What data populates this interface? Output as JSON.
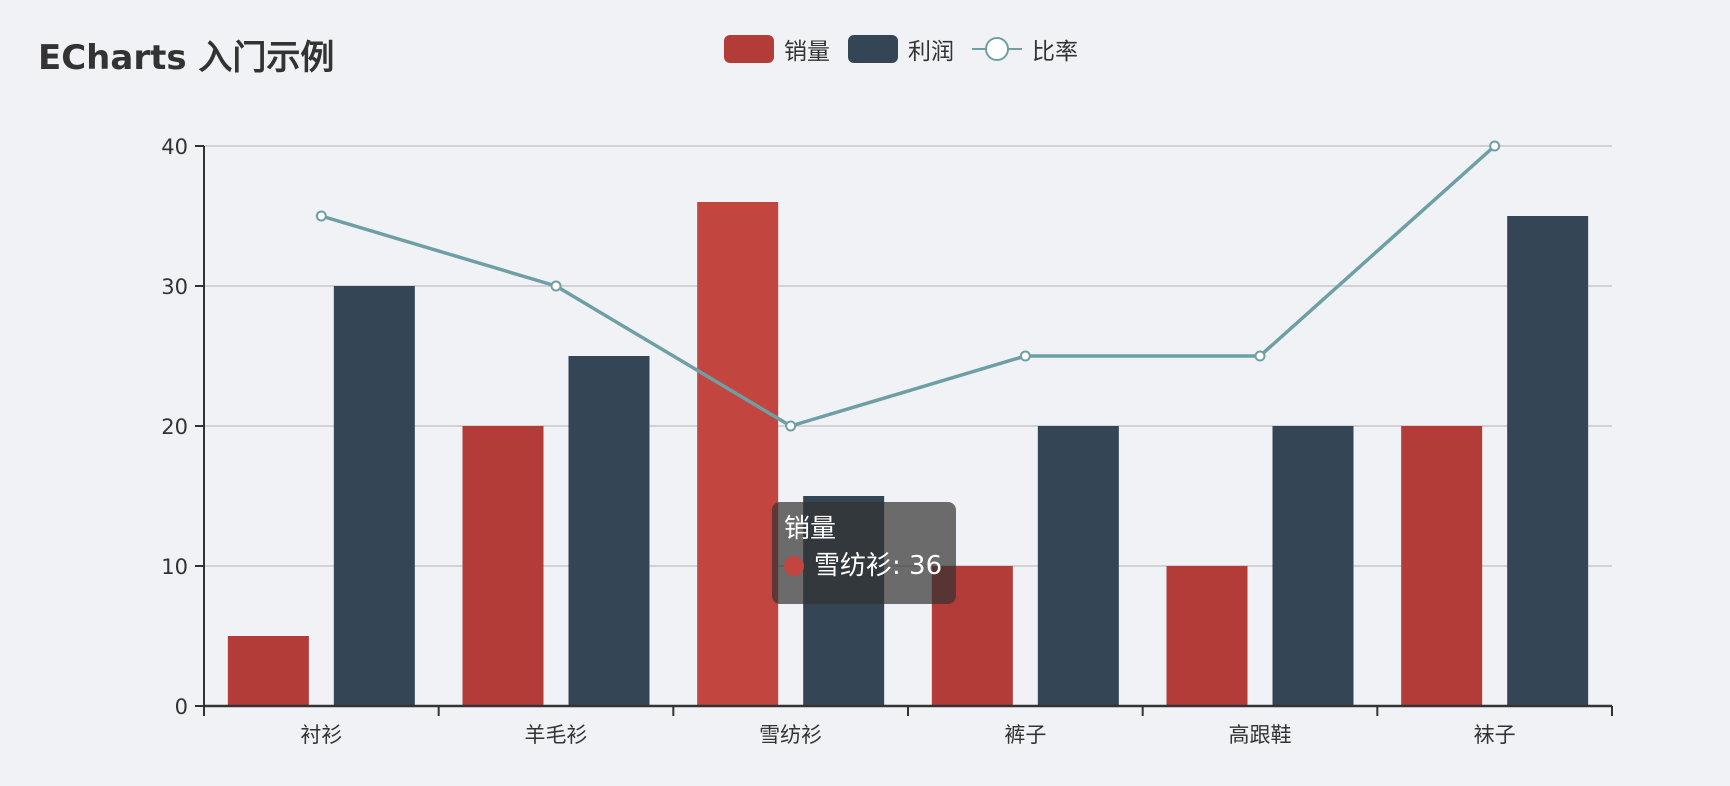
{
  "title": "ECharts 入门示例",
  "legend": [
    {
      "name": "销量",
      "type": "bar",
      "color": "#b33c38"
    },
    {
      "name": "利润",
      "type": "bar",
      "color": "#344655"
    },
    {
      "name": "比率",
      "type": "line",
      "color": "#6e9fa5"
    }
  ],
  "tooltip": {
    "series_name": "销量",
    "category": "雪纺衫",
    "value": 36,
    "label": "雪纺衫: 36",
    "dot_color": "#c2463f"
  },
  "chart_data": {
    "type": "bar",
    "title": "ECharts 入门示例",
    "xlabel": "",
    "ylabel": "",
    "categories": [
      "衬衫",
      "羊毛衫",
      "雪纺衫",
      "裤子",
      "高跟鞋",
      "袜子"
    ],
    "series": [
      {
        "name": "销量",
        "type": "bar",
        "color": "#b33c38",
        "values": [
          5,
          20,
          36,
          10,
          10,
          20
        ]
      },
      {
        "name": "利润",
        "type": "bar",
        "color": "#344655",
        "values": [
          30,
          25,
          15,
          20,
          20,
          35
        ]
      },
      {
        "name": "比率",
        "type": "line",
        "color": "#6e9fa5",
        "values": [
          35,
          30,
          20,
          25,
          25,
          40
        ]
      }
    ],
    "ylim": [
      0,
      40
    ],
    "yticks": [
      0,
      10,
      20,
      30,
      40
    ],
    "grid": true,
    "legend_position": "top-center",
    "highlighted": {
      "series": "销量",
      "category": "雪纺衫",
      "value": 36
    }
  }
}
